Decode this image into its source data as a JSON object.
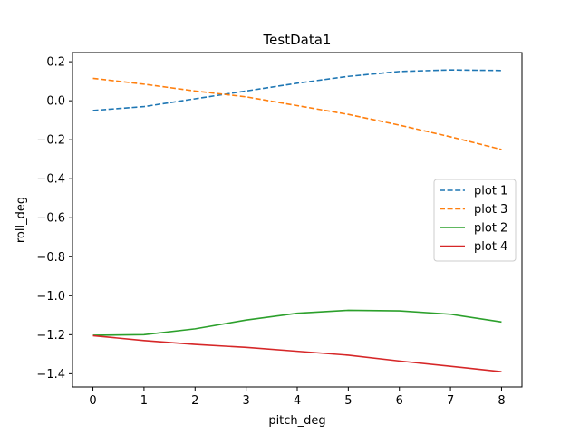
{
  "chart_data": {
    "type": "line",
    "title": "TestData1",
    "xlabel": "pitch_deg",
    "ylabel": "roll_deg",
    "xlim": [
      -0.4,
      8.4
    ],
    "ylim": [
      -1.468,
      0.247
    ],
    "xticks": [
      0,
      1,
      2,
      3,
      4,
      5,
      6,
      7,
      8
    ],
    "xtick_labels": [
      "0",
      "1",
      "2",
      "3",
      "4",
      "5",
      "6",
      "7",
      "8"
    ],
    "yticks": [
      0.2,
      0.0,
      -0.2,
      -0.4,
      -0.6,
      -0.8,
      -1.0,
      -1.2,
      -1.4
    ],
    "ytick_labels": [
      "0.2",
      "0.0",
      "−0.2",
      "−0.4",
      "−0.6",
      "−0.8",
      "−1.0",
      "−1.2",
      "−1.4"
    ],
    "grid": false,
    "legend_position": "center-right",
    "x": [
      0,
      1,
      2,
      3,
      4,
      5,
      6,
      7,
      8
    ],
    "series": [
      {
        "name": "plot 1",
        "color": "#1f77b4",
        "style": "dashed",
        "values": [
          -0.05,
          -0.03,
          0.01,
          0.05,
          0.09,
          0.125,
          0.15,
          0.158,
          0.155
        ]
      },
      {
        "name": "plot 3",
        "color": "#ff7f0e",
        "style": "dashed",
        "values": [
          0.115,
          0.085,
          0.05,
          0.02,
          -0.025,
          -0.07,
          -0.125,
          -0.185,
          -0.25
        ]
      },
      {
        "name": "plot 2",
        "color": "#2ca02c",
        "style": "solid",
        "values": [
          -1.203,
          -1.2,
          -1.17,
          -1.125,
          -1.09,
          -1.075,
          -1.078,
          -1.095,
          -1.135
        ]
      },
      {
        "name": "plot 4",
        "color": "#d62728",
        "style": "solid",
        "values": [
          -1.205,
          -1.23,
          -1.25,
          -1.265,
          -1.285,
          -1.305,
          -1.335,
          -1.362,
          -1.39
        ]
      }
    ]
  }
}
